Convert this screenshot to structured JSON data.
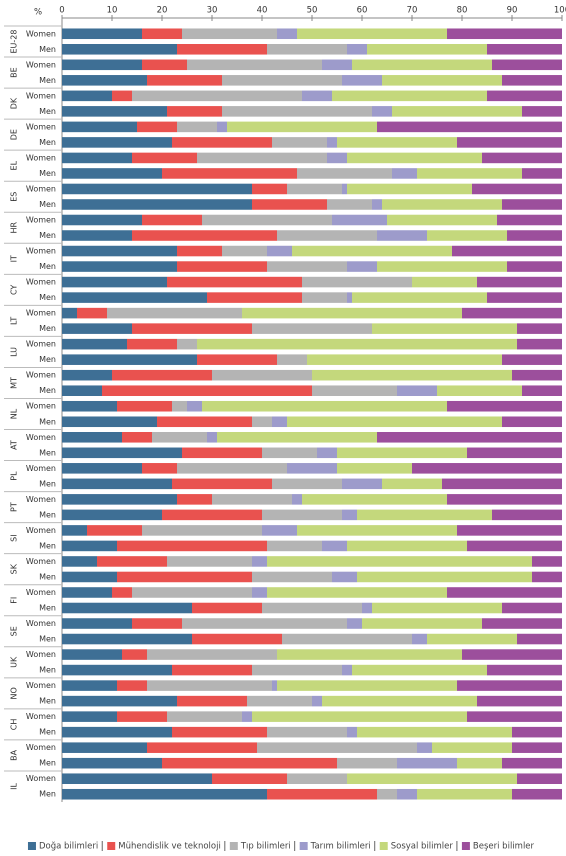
{
  "chart_data": {
    "type": "stacked_bar_horizontal",
    "x_label": "%",
    "xlim": [
      0,
      100
    ],
    "xticks": [
      0,
      10,
      20,
      30,
      40,
      50,
      60,
      70,
      80,
      90,
      100
    ],
    "groups": [
      "EU-28",
      "BE",
      "DK",
      "DE",
      "EL",
      "ES",
      "HR",
      "IT",
      "CY",
      "LT",
      "LU",
      "MT",
      "NL",
      "AT",
      "PL",
      "PT",
      "SI",
      "SK",
      "FI",
      "SE",
      "UK",
      "NO",
      "CH",
      "BA",
      "IL"
    ],
    "subgroups": [
      "Women",
      "Men"
    ],
    "legend": "bottom",
    "series": [
      {
        "name": "Doğa bilimleri",
        "color": "#3e6f95",
        "values": [
          16,
          23,
          16,
          17,
          10,
          21,
          15,
          22,
          14,
          20,
          38,
          38,
          16,
          14,
          23,
          23,
          21,
          29,
          3,
          14,
          13,
          27,
          10,
          8,
          11,
          19,
          12,
          24,
          16,
          22,
          23,
          20,
          5,
          11,
          7,
          11,
          10,
          26,
          14,
          26,
          12,
          22,
          11,
          23,
          11,
          22,
          17,
          20,
          30,
          41
        ]
      },
      {
        "name": "Mühendislik ve teknoloji",
        "color": "#e9524f",
        "values": [
          8,
          18,
          9,
          15,
          4,
          11,
          8,
          20,
          13,
          27,
          7,
          15,
          12,
          29,
          9,
          18,
          27,
          19,
          6,
          24,
          10,
          16,
          20,
          42,
          11,
          19,
          6,
          16,
          7,
          20,
          7,
          20,
          11,
          30,
          14,
          27,
          4,
          14,
          10,
          18,
          5,
          16,
          6,
          14,
          10,
          19,
          22,
          35,
          15,
          22
        ]
      },
      {
        "name": "Tıp bilimleri",
        "color": "#b4b4b4",
        "values": [
          19,
          16,
          27,
          24,
          34,
          30,
          8,
          11,
          26,
          19,
          11,
          9,
          26,
          20,
          9,
          16,
          22,
          9,
          27,
          24,
          4,
          6,
          20,
          17,
          3,
          4,
          11,
          11,
          22,
          14,
          16,
          16,
          24,
          11,
          17,
          16,
          24,
          20,
          33,
          26,
          26,
          18,
          25,
          13,
          15,
          16,
          32,
          12,
          12,
          4
        ]
      },
      {
        "name": "Tarım bilimleri",
        "color": "#9d9bcb",
        "values": [
          4,
          4,
          6,
          8,
          6,
          4,
          2,
          2,
          4,
          5,
          1,
          2,
          11,
          10,
          5,
          6,
          0,
          1,
          0,
          0,
          0,
          0,
          0,
          8,
          3,
          3,
          2,
          4,
          10,
          8,
          2,
          3,
          7,
          5,
          3,
          5,
          3,
          2,
          3,
          3,
          0,
          2,
          1,
          2,
          2,
          2,
          3,
          12,
          0,
          4
        ]
      },
      {
        "name": "Sosyal bilimler",
        "color": "#c4d87c",
        "values": [
          30,
          24,
          28,
          24,
          31,
          26,
          30,
          24,
          27,
          21,
          25,
          24,
          22,
          16,
          32,
          26,
          13,
          27,
          44,
          29,
          64,
          39,
          40,
          17,
          49,
          43,
          32,
          26,
          15,
          12,
          29,
          27,
          32,
          24,
          53,
          35,
          36,
          26,
          24,
          18,
          37,
          27,
          36,
          31,
          43,
          31,
          16,
          9,
          34,
          19
        ]
      },
      {
        "name": "Beşeri bilimler",
        "color": "#9c4f9c",
        "values": [
          23,
          15,
          14,
          12,
          15,
          8,
          37,
          21,
          16,
          8,
          18,
          12,
          13,
          11,
          22,
          11,
          17,
          15,
          20,
          9,
          9,
          12,
          10,
          8,
          23,
          12,
          37,
          19,
          30,
          24,
          23,
          14,
          21,
          19,
          6,
          6,
          23,
          12,
          16,
          9,
          20,
          15,
          21,
          17,
          19,
          10,
          10,
          12,
          9,
          10
        ]
      }
    ]
  }
}
